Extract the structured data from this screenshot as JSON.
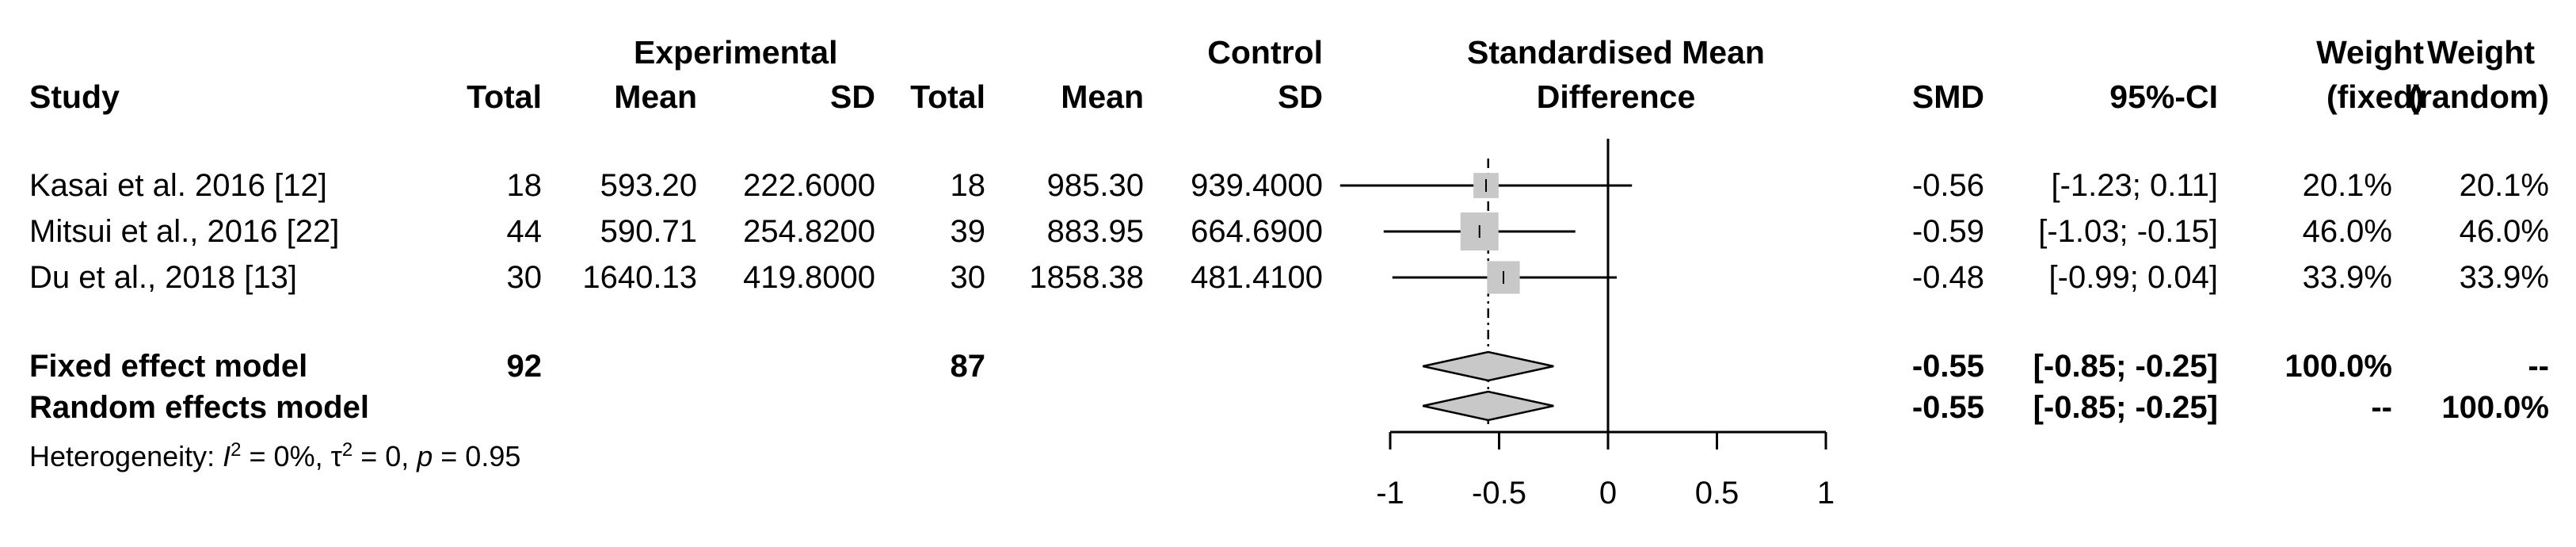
{
  "headers": {
    "study": "Study",
    "exp_group": "Experimental",
    "exp_total": "Total",
    "exp_mean": "Mean",
    "exp_sd": "SD",
    "ctl_group": "Control",
    "ctl_total": "Total",
    "ctl_mean": "Mean",
    "ctl_sd": "SD",
    "effect_line1": "Standardised Mean",
    "effect_line2": "Difference",
    "smd": "SMD",
    "ci": "95%-CI",
    "wf_line1": "Weight",
    "wf_line2": "(fixed)",
    "wr_line1": "Weight",
    "wr_line2": "(random)"
  },
  "studies": [
    {
      "name": "Kasai et al. 2016 [12]",
      "exp_total": "18",
      "exp_mean": "593.20",
      "exp_sd": "222.6000",
      "ctl_total": "18",
      "ctl_mean": "985.30",
      "ctl_sd": "939.4000",
      "smd": "-0.56",
      "ci": "[-1.23; 0.11]",
      "w_fixed": "20.1%",
      "w_random": "20.1%"
    },
    {
      "name": "Mitsui et al., 2016 [22]",
      "exp_total": "44",
      "exp_mean": "590.71",
      "exp_sd": "254.8200",
      "ctl_total": "39",
      "ctl_mean": "883.95",
      "ctl_sd": "664.6900",
      "smd": "-0.59",
      "ci": "[-1.03; -0.15]",
      "w_fixed": "46.0%",
      "w_random": "46.0%"
    },
    {
      "name": "Du et al., 2018 [13]",
      "exp_total": "30",
      "exp_mean": "1640.13",
      "exp_sd": "419.8000",
      "ctl_total": "30",
      "ctl_mean": "1858.38",
      "ctl_sd": "481.4100",
      "smd": "-0.48",
      "ci": "[-0.99; 0.04]",
      "w_fixed": "33.9%",
      "w_random": "33.9%"
    }
  ],
  "fixed": {
    "name": "Fixed effect model",
    "exp_total": "92",
    "ctl_total": "87",
    "smd": "-0.55",
    "ci": "[-0.85; -0.25]",
    "w_fixed": "100.0%",
    "w_random": "--"
  },
  "random": {
    "name": "Random effects model",
    "smd": "-0.55",
    "ci": "[-0.85; -0.25]",
    "w_fixed": "--",
    "w_random": "100.0%"
  },
  "heterogeneity": {
    "prefix": "Heterogeneity: ",
    "i2_sym": "I",
    "i2_sup": "2",
    "i2_val": " = 0%, ",
    "tau_sym": "τ",
    "tau_sup": "2",
    "tau_val": " = 0, ",
    "p_sym": "p",
    "p_val": " = 0.95"
  },
  "chart_data": {
    "type": "forest",
    "xlim": [
      -1,
      1
    ],
    "ticks": [
      -1,
      -0.5,
      0,
      0.5,
      1
    ],
    "tick_labels": [
      "-1",
      "-0.5",
      "0",
      "0.5",
      "1"
    ],
    "study_points": [
      {
        "name": "Kasai et al. 2016 [12]",
        "smd": -0.56,
        "lower": -1.23,
        "upper": 0.11,
        "weight": 20.1
      },
      {
        "name": "Mitsui et al., 2016 [22]",
        "smd": -0.59,
        "lower": -1.03,
        "upper": -0.15,
        "weight": 46.0
      },
      {
        "name": "Du et al., 2018 [13]",
        "smd": -0.48,
        "lower": -0.99,
        "upper": 0.04,
        "weight": 33.9
      }
    ],
    "summaries": [
      {
        "name": "Fixed effect model",
        "smd": -0.55,
        "lower": -0.85,
        "upper": -0.25
      },
      {
        "name": "Random effects model",
        "smd": -0.55,
        "lower": -0.85,
        "upper": -0.25
      }
    ],
    "colors": {
      "square": "#c8c8c8",
      "diamond": "#c8c8c8",
      "line": "#000000"
    }
  }
}
